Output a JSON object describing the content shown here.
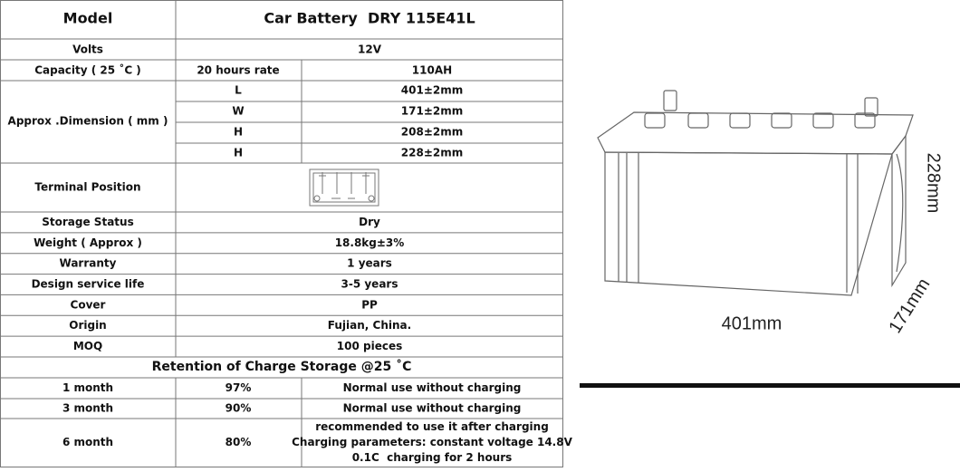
{
  "table": {
    "header": {
      "label": "Model",
      "value": "Car Battery  DRY 115E41L"
    },
    "volts": [
      "Volts",
      "12V"
    ],
    "capacity": [
      "Capacity ( 25 ˚C )",
      "20 hours rate",
      "110AH"
    ],
    "dimension": {
      "label": "Approx .Dimension ( mm )",
      "items": [
        [
          "L",
          "401±2mm"
        ],
        [
          "W",
          "171±2mm"
        ],
        [
          "H",
          "208±2mm"
        ],
        [
          "H",
          "228±2mm"
        ]
      ]
    },
    "terminal": "Terminal Position",
    "rows": [
      [
        "Storage Status",
        "Dry"
      ],
      [
        "Weight ( Approx )",
        "18.8kg±3%"
      ],
      [
        "Warranty",
        "1 years"
      ],
      [
        "Design service life",
        "3-5 years"
      ],
      [
        "Cover",
        "PP"
      ],
      [
        "Origin",
        "Fujian, China."
      ],
      [
        "MOQ",
        "100 pieces"
      ]
    ]
  },
  "retention": {
    "title": "Retention of Charge Storage @25 ˚C",
    "rows": [
      [
        "1 month",
        "97%",
        "Normal use without charging"
      ],
      [
        "3 month",
        "90%",
        "Normal use without charging"
      ],
      [
        "6 month",
        "80%",
        [
          "recommended to use it after charging",
          "Charging parameters: constant voltage 14.8V",
          "0.1C  charging for 2 hours"
        ]
      ]
    ]
  },
  "figure": {
    "length": "401mm",
    "height": "228mm",
    "width": "171mm"
  }
}
